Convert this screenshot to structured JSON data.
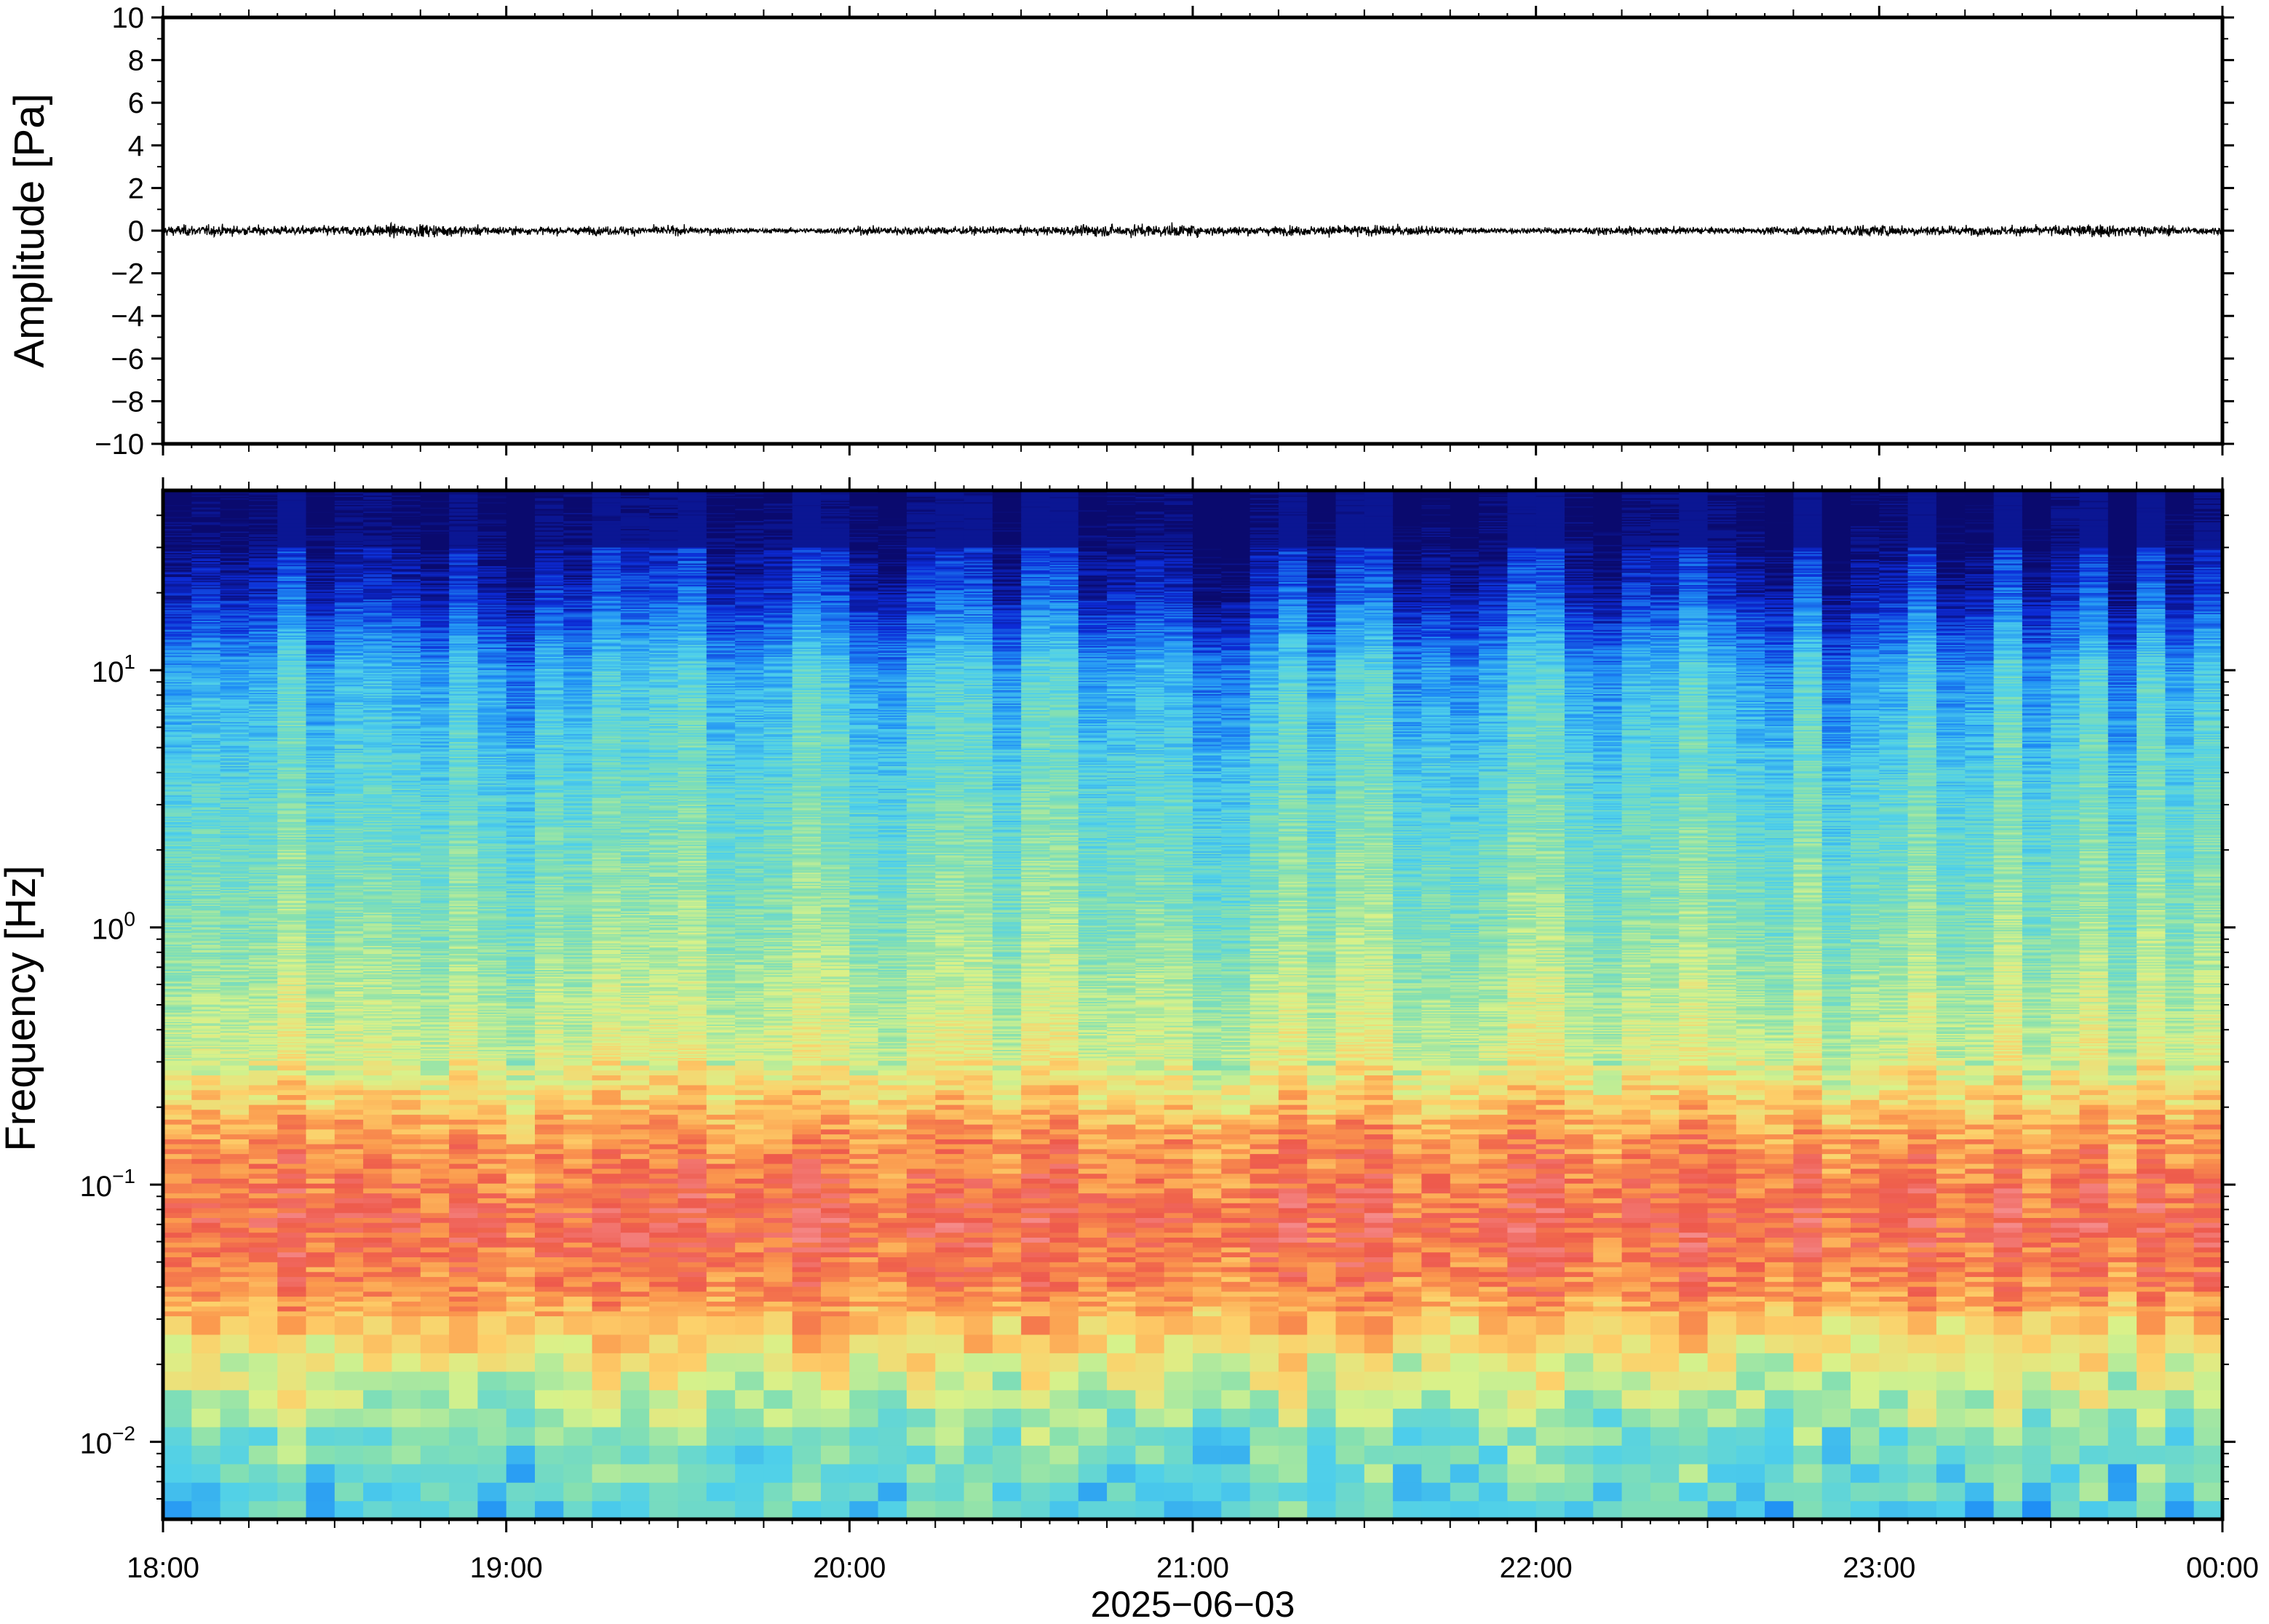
{
  "chart_data": [
    {
      "type": "line",
      "ylabel": "Amplitude [Pa]",
      "ylim": [
        -10,
        10
      ],
      "yticks": [
        -10,
        -8,
        -6,
        -4,
        -2,
        0,
        2,
        4,
        6,
        8,
        10
      ],
      "ytick_labels": [
        "−10",
        "−8",
        "−6",
        "−4",
        "−2",
        "0",
        "2",
        "4",
        "6",
        "8",
        "10"
      ],
      "xlim": [
        "18:00",
        "00:00"
      ],
      "series": [
        {
          "color": "#000000",
          "typical_amplitude": 0.4,
          "peak_amplitude": 1.0
        }
      ]
    },
    {
      "type": "heatmap",
      "ylabel": "Frequency [Hz]",
      "yscale": "log",
      "ylim": [
        0.005,
        50
      ],
      "yticks": [
        0.01,
        0.1,
        1,
        10
      ],
      "ytick_labels": [
        {
          "base": "10",
          "exp": "−2"
        },
        {
          "base": "10",
          "exp": "−1"
        },
        {
          "base": "10",
          "exp": "0"
        },
        {
          "base": "10",
          "exp": "1"
        }
      ],
      "xlabel": "2025−06−03",
      "xticks": [
        "18:00",
        "19:00",
        "20:00",
        "21:00",
        "22:00",
        "23:00",
        "00:00"
      ],
      "colormap": [
        "#0a0a6e",
        "#0c2bd6",
        "#1f8ff5",
        "#4fd0ea",
        "#86e0b0",
        "#d8f28a",
        "#fdd06a",
        "#fb9a4e",
        "#ee5a4c",
        "#f58a8a"
      ],
      "time_columns": 72,
      "description_levels": [
        {
          "freq": 40,
          "level": 0.0
        },
        {
          "freq": 20,
          "level": 0.1
        },
        {
          "freq": 10,
          "level": 0.28
        },
        {
          "freq": 3,
          "level": 0.38
        },
        {
          "freq": 1,
          "level": 0.45
        },
        {
          "freq": 0.3,
          "level": 0.56
        },
        {
          "freq": 0.15,
          "level": 0.78
        },
        {
          "freq": 0.07,
          "level": 0.88
        },
        {
          "freq": 0.04,
          "level": 0.8
        },
        {
          "freq": 0.02,
          "level": 0.58
        },
        {
          "freq": 0.01,
          "level": 0.42
        },
        {
          "freq": 0.005,
          "level": 0.34
        }
      ]
    }
  ]
}
